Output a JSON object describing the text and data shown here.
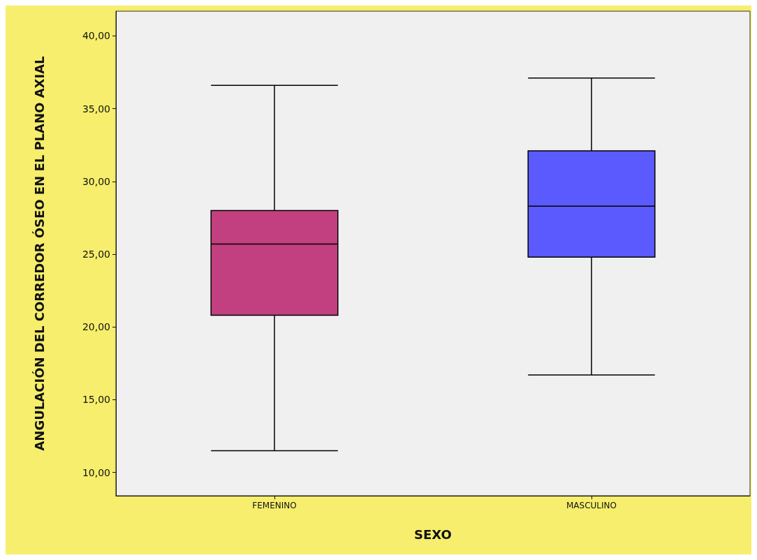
{
  "chart_data": {
    "type": "box",
    "xlabel": "SEXO",
    "ylabel": "ANGULACIÓN DEL CORREDOR ÓSEO EN EL PLANO AXIAL",
    "categories": [
      "FEMENINO",
      "MASCULINO"
    ],
    "boxes": [
      {
        "low": 11.5,
        "q1": 20.8,
        "median": 25.7,
        "q3": 28.0,
        "high": 36.6
      },
      {
        "low": 16.7,
        "q1": 24.8,
        "median": 28.3,
        "q3": 32.1,
        "high": 37.1
      }
    ],
    "colors": [
      "#c2407f",
      "#5a5aff"
    ],
    "ylim": [
      8.4,
      41.7
    ],
    "yticks": [
      {
        "value": 10,
        "label": "10,00"
      },
      {
        "value": 15,
        "label": "15,00"
      },
      {
        "value": 20,
        "label": "20,00"
      },
      {
        "value": 25,
        "label": "25,00"
      },
      {
        "value": 30,
        "label": "30,00"
      },
      {
        "value": 35,
        "label": "35,00"
      },
      {
        "value": 40,
        "label": "40,00"
      }
    ],
    "grid": false
  }
}
